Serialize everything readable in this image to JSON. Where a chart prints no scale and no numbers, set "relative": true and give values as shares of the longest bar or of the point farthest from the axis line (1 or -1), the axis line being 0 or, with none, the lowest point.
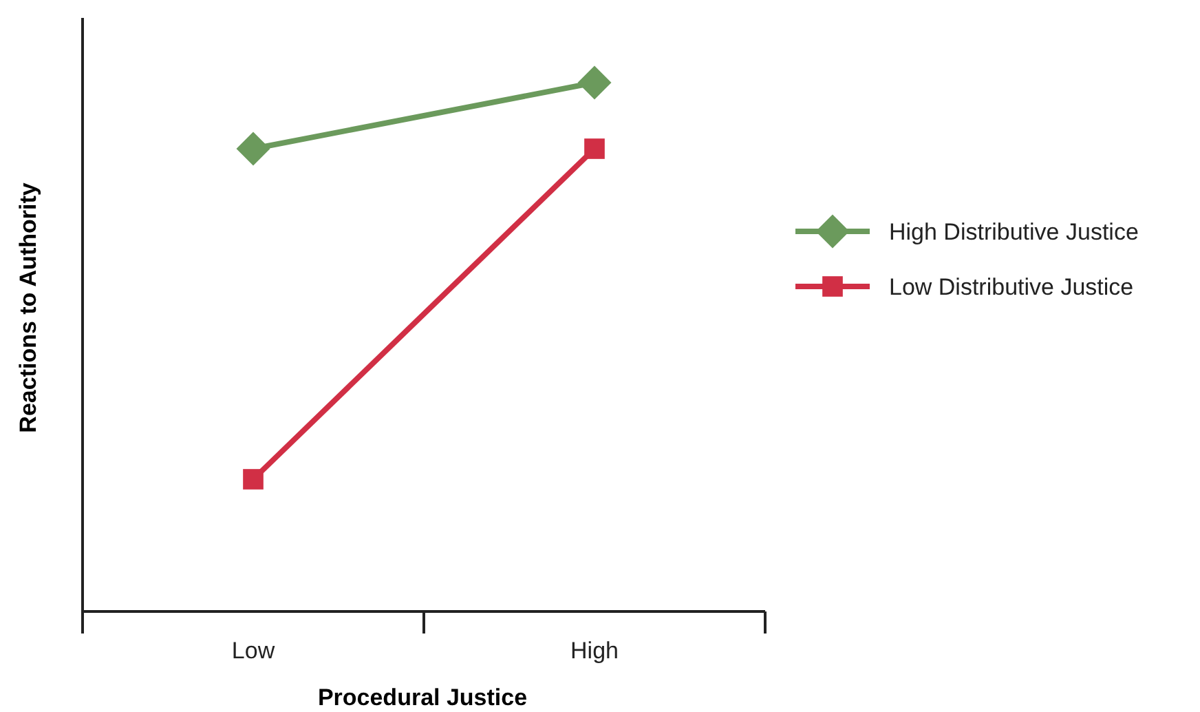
{
  "chart_data": {
    "type": "line",
    "xlabel": "Procedural Justice",
    "ylabel": "Reactions to Authority",
    "categories": [
      "Low",
      "High"
    ],
    "relative": true,
    "legend": "right",
    "line_style": "solid",
    "series": [
      {
        "name": "High Distributive Justice",
        "color": "#6b9a5c",
        "marker": "diamond",
        "values": [
          0.875,
          1
        ]
      },
      {
        "name": "Low Distributive Justice",
        "color": "#d12f45",
        "marker": "square",
        "values": [
          0.25,
          0.875
        ]
      }
    ]
  }
}
